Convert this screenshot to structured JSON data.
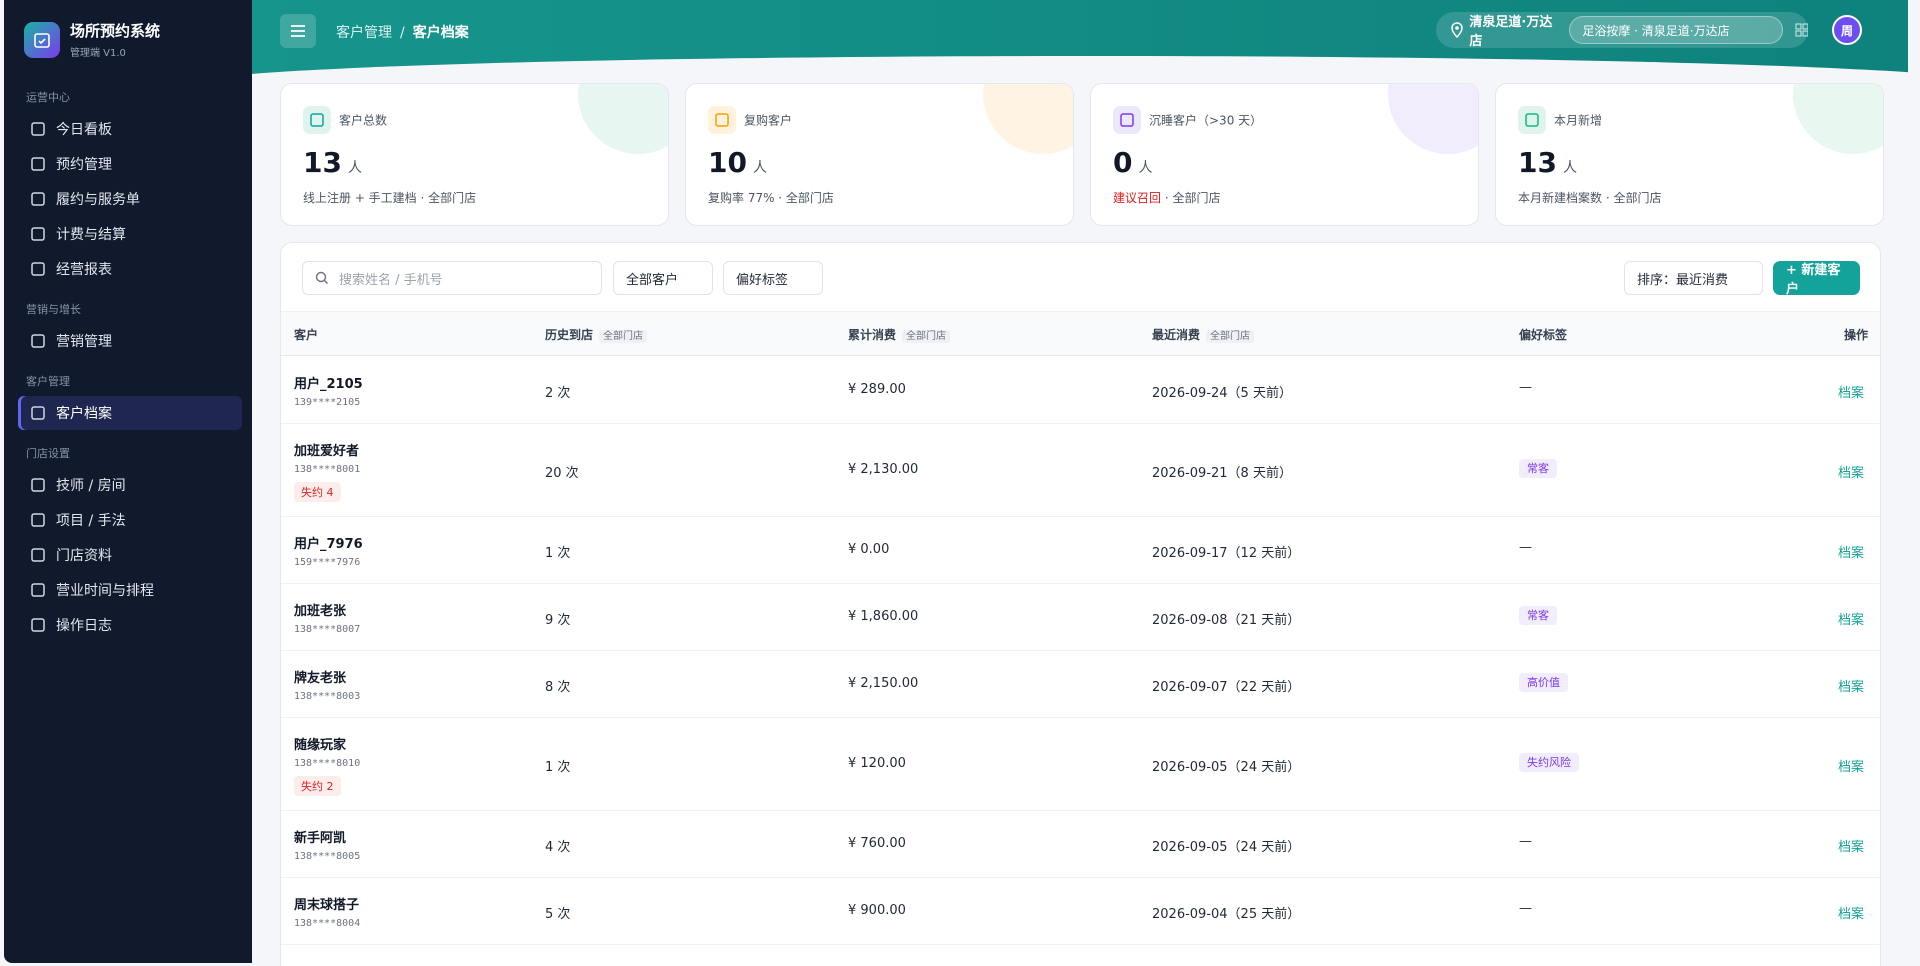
{
  "sidebar": {
    "brand": {
      "title": "场所预约系统",
      "subtitle": "管理端 V1.0"
    },
    "groups": [
      {
        "label": "运营中心",
        "items": [
          "今日看板",
          "预约管理",
          "履约与服务单",
          "计费与结算",
          "经营报表"
        ]
      },
      {
        "label": "营销与增长",
        "items": [
          "营销管理"
        ]
      },
      {
        "label": "客户管理",
        "items": [
          "客户档案"
        ]
      },
      {
        "label": "门店设置",
        "items": [
          "技师 / 房间",
          "项目 / 手法",
          "门店资料",
          "营业时间与排程",
          "操作日志"
        ]
      }
    ],
    "active": "客户档案"
  },
  "header": {
    "breadcrumb": [
      "客户管理",
      "/",
      "客户档案"
    ],
    "store": "清泉足道·万达店",
    "store_select": "足浴按摩 · 清泉足道·万达店",
    "avatar": "周"
  },
  "stats": [
    {
      "label": "客户总数",
      "value": 13,
      "unit": "人",
      "note": "线上注册 + 手工建档 · 全部门店"
    },
    {
      "label": "复购客户",
      "value": 10,
      "unit": "人",
      "note": "复购率 77% · 全部门店"
    },
    {
      "label": "沉睡客户（>30 天）",
      "value": 0,
      "unit": "人",
      "alert": "建议召回",
      "note": " · 全部门店"
    },
    {
      "label": "本月新增",
      "value": 13,
      "unit": "人",
      "note": "本月新建档案数 · 全部门店"
    }
  ],
  "toolbar": {
    "search": "搜索姓名 / 手机号",
    "filter": "全部客户",
    "tags": "偏好标签",
    "sort": "排序：最近消费",
    "create": "+ 新建客户"
  },
  "table": {
    "headers": [
      {
        "text": "客户"
      },
      {
        "text": "历史到店",
        "badge": "全部门店"
      },
      {
        "text": "累计消费",
        "badge": "全部门店"
      },
      {
        "text": "最近消费",
        "badge": "全部门店"
      },
      {
        "text": "偏好标签"
      },
      {
        "text": "操作"
      }
    ],
    "rows": [
      {
        "name": "用户_2105",
        "phone": "139****2105",
        "visits": "2 次",
        "spend": "¥ 289.00",
        "last": "2026-09-24（5 天前）",
        "pref": "—",
        "action": "档案"
      },
      {
        "name": "加班爱好者",
        "phone": "138****8001",
        "tag": "失约 4",
        "visits": "20 次",
        "spend": "¥ 2,130.00",
        "last": "2026-09-21（8 天前）",
        "pref": "常客",
        "action": "档案"
      },
      {
        "name": "用户_7976",
        "phone": "159****7976",
        "visits": "1 次",
        "spend": "¥ 0.00",
        "last": "2026-09-17（12 天前）",
        "pref": "—",
        "action": "档案"
      },
      {
        "name": "加班老张",
        "phone": "138****8007",
        "visits": "9 次",
        "spend": "¥ 1,860.00",
        "last": "2026-09-08（21 天前）",
        "pref": "常客",
        "action": "档案"
      },
      {
        "name": "牌友老张",
        "phone": "138****8003",
        "visits": "8 次",
        "spend": "¥ 2,150.00",
        "last": "2026-09-07（22 天前）",
        "pref": "高价值",
        "action": "档案"
      },
      {
        "name": "随缘玩家",
        "phone": "138****8010",
        "tag": "失约 2",
        "visits": "1 次",
        "spend": "¥ 120.00",
        "last": "2026-09-05（24 天前）",
        "pref": "失约风险",
        "action": "档案"
      },
      {
        "name": "新手阿凯",
        "phone": "138****8005",
        "visits": "4 次",
        "spend": "¥ 760.00",
        "last": "2026-09-05（24 天前）",
        "pref": "—",
        "action": "档案"
      },
      {
        "name": "周末球搭子",
        "phone": "138****8004",
        "visits": "5 次",
        "spend": "¥ 900.00",
        "last": "2026-09-04（25 天前）",
        "pref": "—",
        "action": "档案"
      }
    ]
  }
}
